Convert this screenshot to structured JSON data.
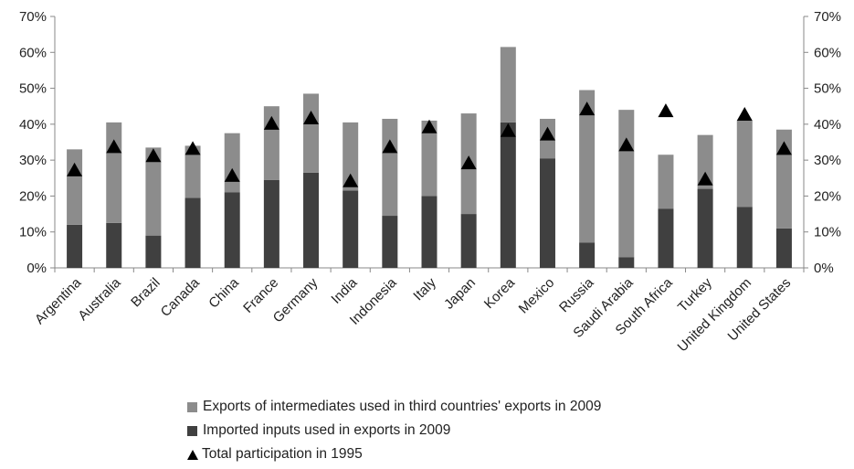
{
  "chart_data": {
    "type": "bar",
    "stacked": true,
    "categories": [
      "Argentina",
      "Australia",
      "Brazil",
      "Canada",
      "China",
      "France",
      "Germany",
      "India",
      "Indonesia",
      "Italy",
      "Japan",
      "Korea",
      "Mexico",
      "Russia",
      "Saudi Arabia",
      "South Africa",
      "Turkey",
      "United Kingdom",
      "United States"
    ],
    "series": [
      {
        "name": "Imported inputs used in exports in 2009",
        "kind": "bar",
        "color": "#404040",
        "values": [
          12,
          12.5,
          9,
          19.5,
          21,
          24.5,
          26.5,
          21.5,
          14.5,
          20,
          15,
          40.5,
          30.5,
          7,
          3,
          16.5,
          22,
          17,
          11
        ]
      },
      {
        "name": "Exports of intermediates used in third countries' exports in 2009",
        "kind": "bar",
        "color": "#8c8c8c",
        "values": [
          21,
          28,
          24.5,
          14.5,
          16.5,
          20.5,
          22,
          19,
          27,
          21,
          28,
          21,
          11,
          42.5,
          41,
          15,
          15,
          24,
          27.5
        ]
      },
      {
        "name": "Total participation in 1995",
        "kind": "marker",
        "marker": "triangle",
        "color": "#000000",
        "values": [
          27,
          33.5,
          31,
          33,
          25.5,
          40,
          41.5,
          24,
          33.5,
          39,
          29,
          38,
          37,
          44,
          34,
          43.5,
          24.5,
          42.5,
          33
        ]
      }
    ],
    "ylim": [
      0,
      70
    ],
    "yticks": [
      "0%",
      "10%",
      "20%",
      "30%",
      "40%",
      "50%",
      "60%",
      "70%"
    ],
    "ytick_values": [
      0,
      10,
      20,
      30,
      40,
      50,
      60,
      70
    ],
    "secondary_yaxis": true,
    "grid": false,
    "legend_position": "bottom",
    "legend_order": [
      1,
      0,
      2
    ]
  }
}
